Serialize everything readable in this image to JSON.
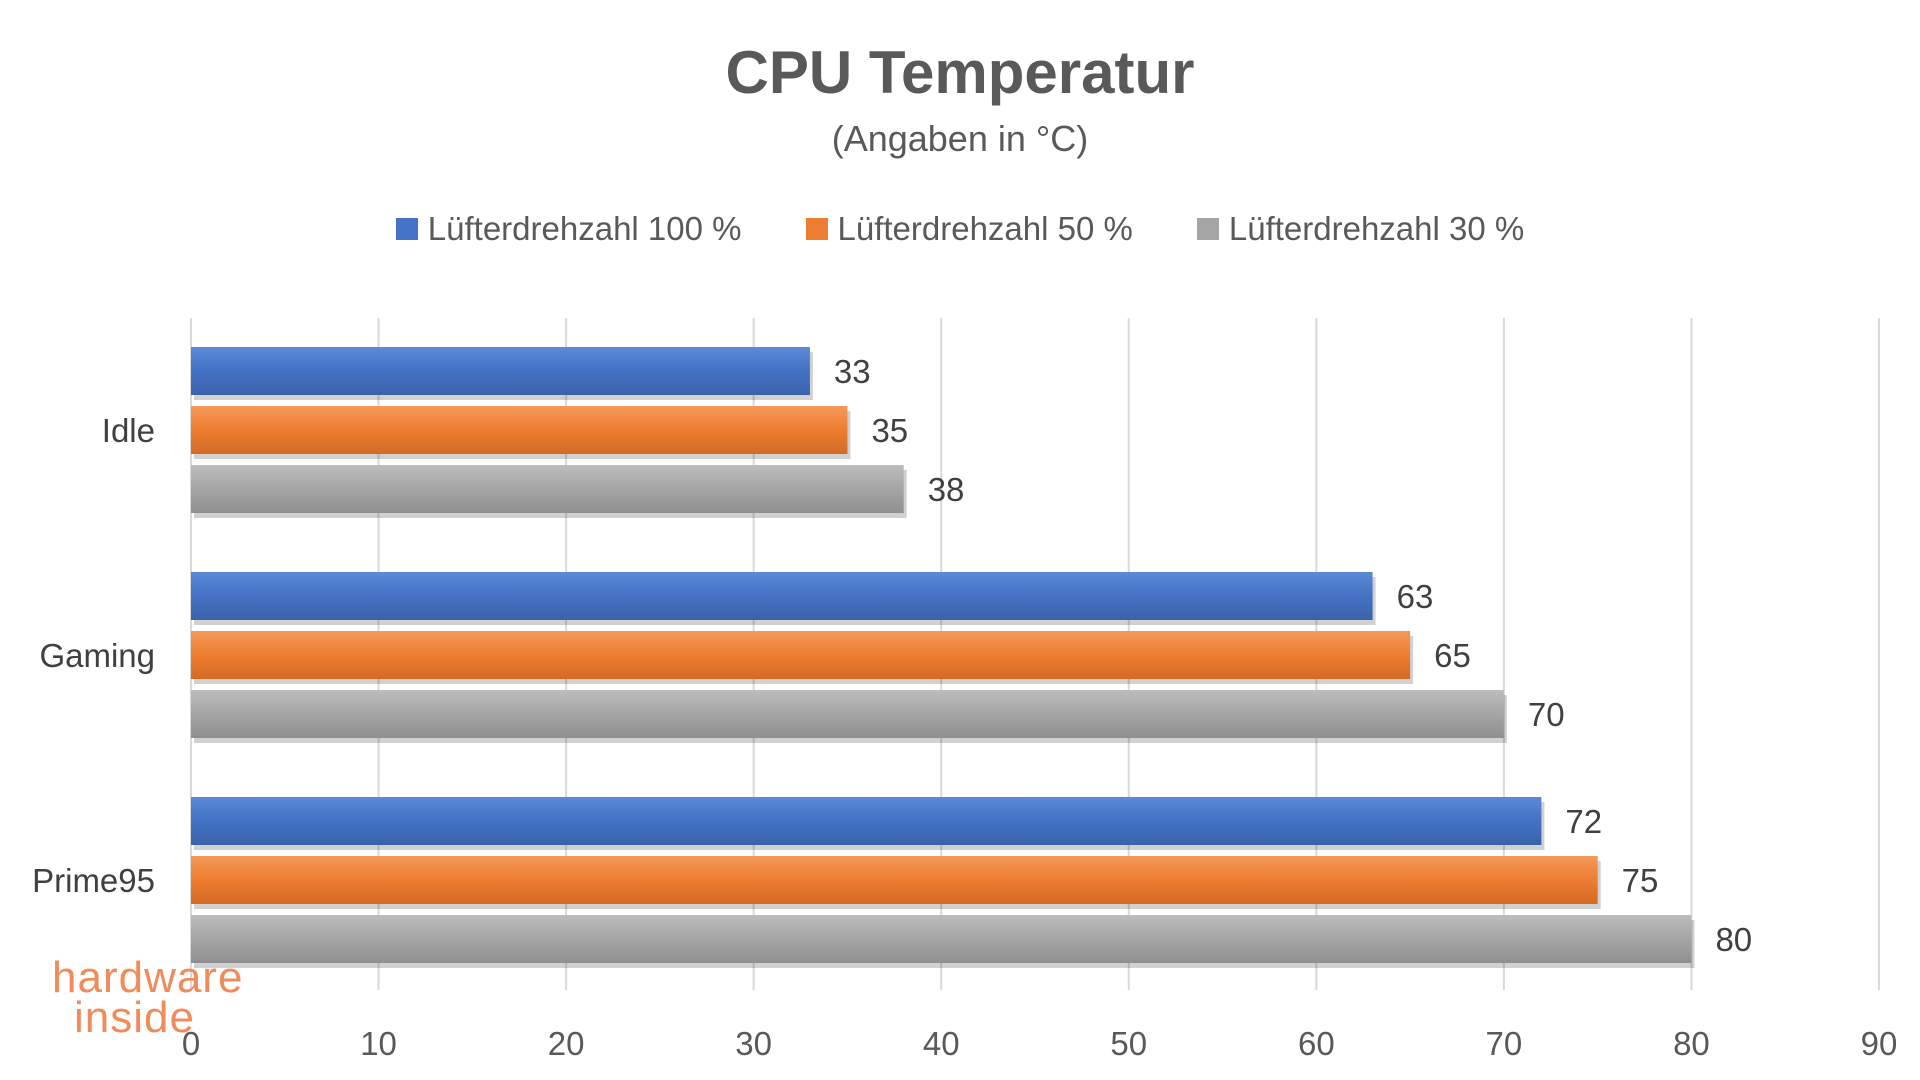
{
  "chart_data": {
    "type": "bar",
    "orientation": "horizontal",
    "title": "CPU Temperatur",
    "subtitle": "(Angaben in °C)",
    "categories": [
      "Idle",
      "Gaming",
      "Prime95"
    ],
    "series": [
      {
        "name": "Lüfterdrehzahl 100 %",
        "color": "#4472c4",
        "values": [
          33,
          63,
          72
        ]
      },
      {
        "name": "Lüfterdrehzahl 50 %",
        "color": "#ed7d31",
        "values": [
          35,
          65,
          75
        ]
      },
      {
        "name": "Lüfterdrehzahl 30 %",
        "color": "#a5a5a5",
        "values": [
          38,
          70,
          80
        ]
      }
    ],
    "xlim": [
      0,
      90
    ],
    "xticks": [
      0,
      10,
      20,
      30,
      40,
      50,
      60,
      70,
      80,
      90
    ],
    "grid": true,
    "legend": "top-center",
    "data_labels": true
  },
  "watermark": {
    "line1": "hardware",
    "line2": "inside"
  }
}
